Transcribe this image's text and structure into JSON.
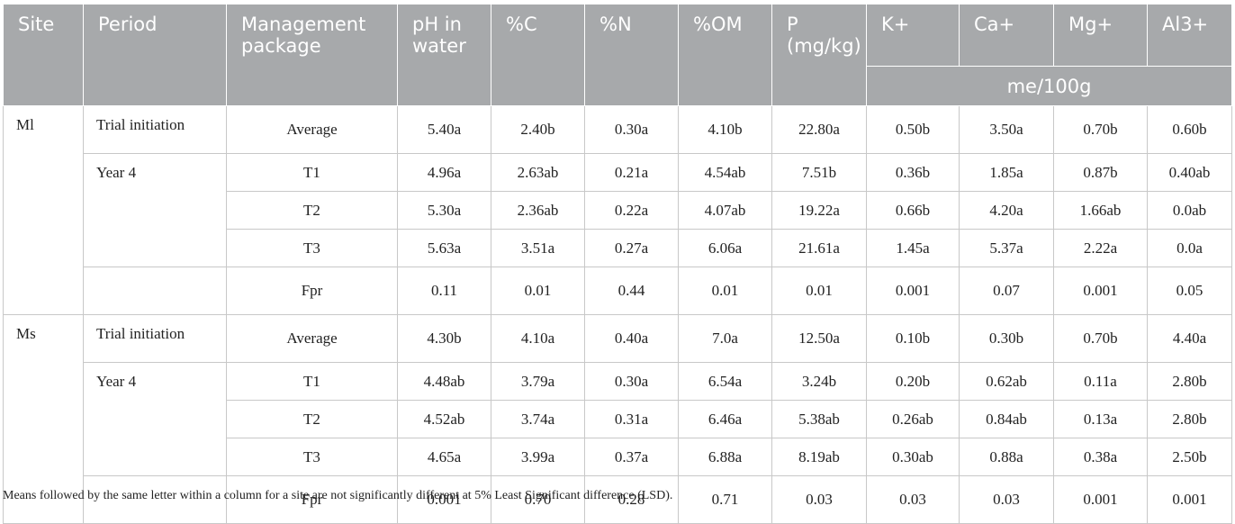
{
  "table": {
    "header": {
      "columns": [
        "Site",
        "Period",
        "Management package",
        "pH in water",
        "%C",
        "%N",
        "%OM",
        "P (mg/kg)",
        "K+",
        "Ca+",
        "Mg+",
        "Al3+"
      ],
      "unit": "me/100g"
    },
    "sites": [
      {
        "site": "Ml",
        "periods": [
          {
            "period": "Trial initiation",
            "rows": [
              {
                "package": "Average",
                "values": [
                  "5.40a",
                  "2.40b",
                  "0.30a",
                  "4.10b",
                  "22.80a",
                  "0.50b",
                  "3.50a",
                  "0.70b",
                  "0.60b"
                ]
              }
            ]
          },
          {
            "period": "Year 4",
            "rows": [
              {
                "package": "T1",
                "values": [
                  "4.96a",
                  "2.63ab",
                  "0.21a",
                  "4.54ab",
                  "7.51b",
                  "0.36b",
                  "1.85a",
                  "0.87b",
                  "0.40ab"
                ]
              },
              {
                "package": "T2",
                "values": [
                  "5.30a",
                  "2.36ab",
                  "0.22a",
                  "4.07ab",
                  "19.22a",
                  "0.66b",
                  "4.20a",
                  "1.66ab",
                  "0.0ab"
                ]
              },
              {
                "package": "T3",
                "values": [
                  "5.63a",
                  "3.51a",
                  "0.27a",
                  "6.06a",
                  "21.61a",
                  "1.45a",
                  "5.37a",
                  "2.22a",
                  "0.0a"
                ]
              }
            ]
          },
          {
            "rows": [
              {
                "package": "Fpr",
                "values": [
                  "0.11",
                  "0.01",
                  "0.44",
                  "0.01",
                  "0.01",
                  "0.001",
                  "0.07",
                  "0.001",
                  "0.05"
                ]
              }
            ]
          }
        ]
      },
      {
        "site": "Ms",
        "periods": [
          {
            "period": "Trial initiation",
            "rows": [
              {
                "package": "Average",
                "values": [
                  "4.30b",
                  "4.10a",
                  "0.40a",
                  "7.0a",
                  "12.50a",
                  "0.10b",
                  "0.30b",
                  "0.70b",
                  "4.40a"
                ]
              }
            ]
          },
          {
            "period": "Year 4",
            "rows": [
              {
                "package": "T1",
                "values": [
                  "4.48ab",
                  "3.79a",
                  "0.30a",
                  "6.54a",
                  "3.24b",
                  "0.20b",
                  "0.62ab",
                  "0.11a",
                  "2.80b"
                ]
              },
              {
                "package": "T2",
                "values": [
                  "4.52ab",
                  "3.74a",
                  "0.31a",
                  "6.46a",
                  "5.38ab",
                  "0.26ab",
                  "0.84ab",
                  "0.13a",
                  "2.80b"
                ]
              },
              {
                "package": "T3",
                "values": [
                  "4.65a",
                  "3.99a",
                  "0.37a",
                  "6.88a",
                  "8.19ab",
                  "0.30ab",
                  "0.88a",
                  "0.38a",
                  "2.50b"
                ]
              }
            ]
          },
          {
            "rows": [
              {
                "package": "Fpr",
                "values": [
                  "0.001",
                  "0.70",
                  "0.28",
                  "0.71",
                  "0.03",
                  "0.03",
                  "0.03",
                  "0.001",
                  "0.001"
                ]
              }
            ]
          }
        ]
      }
    ],
    "footnote": "Means followed by the same letter within a column for a site are not significantly different at 5% Least Significant difference (LSD)."
  }
}
